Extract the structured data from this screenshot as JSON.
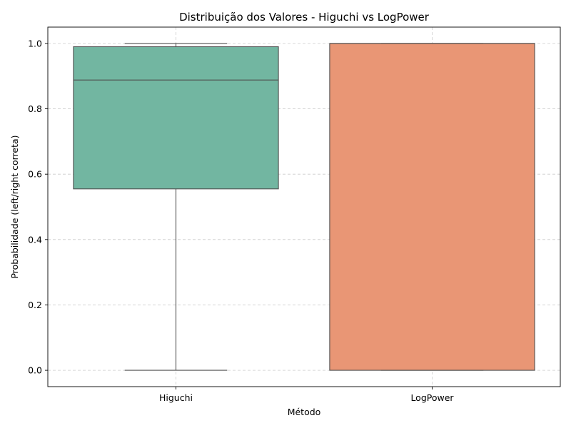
{
  "chart_data": {
    "type": "box",
    "title": "Distribuição dos Valores - Higuchi vs LogPower",
    "xlabel": "Método",
    "ylabel": "Probabilidade (left/right correta)",
    "categories": [
      "Higuchi",
      "LogPower"
    ],
    "boxes": [
      {
        "category": "Higuchi",
        "whisker_low": 0.0,
        "q1": 0.555,
        "median": 0.888,
        "q3": 0.99,
        "whisker_high": 1.0,
        "color": "#72b6a1"
      },
      {
        "category": "LogPower",
        "whisker_low": 0.0,
        "q1": 0.0,
        "median": 1.0,
        "q3": 1.0,
        "whisker_high": 1.0,
        "color": "#e99675"
      }
    ],
    "yticks": [
      "0.0",
      "0.2",
      "0.4",
      "0.6",
      "0.8",
      "1.0"
    ],
    "ylim": [
      -0.05,
      1.05
    ],
    "grid": true,
    "colors": {
      "box_edge": "#505050",
      "grid": "#cccccc"
    }
  }
}
